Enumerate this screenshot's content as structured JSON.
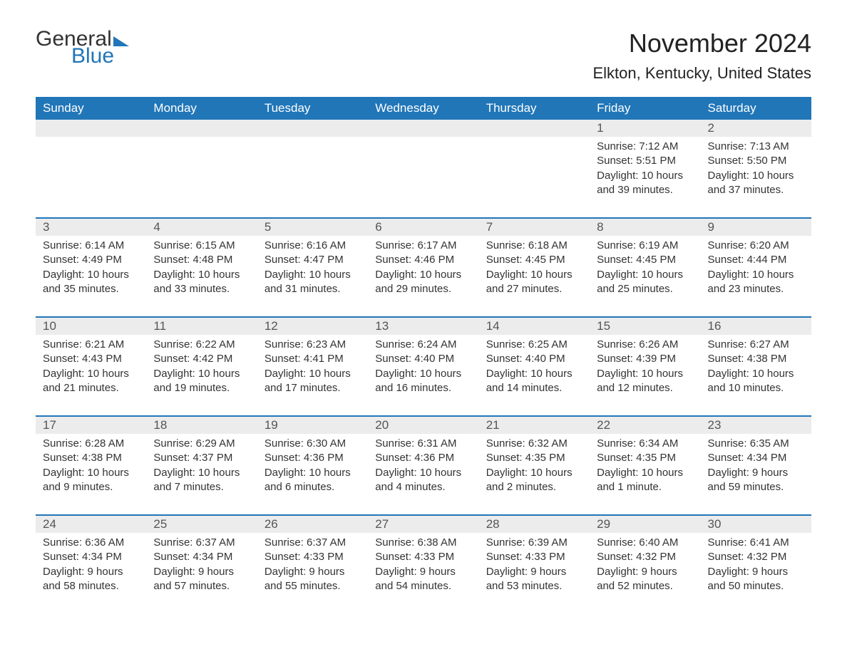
{
  "logo": {
    "text1": "General",
    "text2": "Blue"
  },
  "title": "November 2024",
  "location": "Elkton, Kentucky, United States",
  "colors": {
    "header_bg": "#2176b8",
    "header_text": "#ffffff",
    "daynum_bg": "#ececec",
    "daynum_text": "#555555",
    "body_text": "#333333",
    "rule": "#2176b8"
  },
  "days_of_week": [
    "Sunday",
    "Monday",
    "Tuesday",
    "Wednesday",
    "Thursday",
    "Friday",
    "Saturday"
  ],
  "weeks": [
    [
      null,
      null,
      null,
      null,
      null,
      {
        "n": "1",
        "sunrise": "7:12 AM",
        "sunset": "5:51 PM",
        "daylight": "10 hours and 39 minutes."
      },
      {
        "n": "2",
        "sunrise": "7:13 AM",
        "sunset": "5:50 PM",
        "daylight": "10 hours and 37 minutes."
      }
    ],
    [
      {
        "n": "3",
        "sunrise": "6:14 AM",
        "sunset": "4:49 PM",
        "daylight": "10 hours and 35 minutes."
      },
      {
        "n": "4",
        "sunrise": "6:15 AM",
        "sunset": "4:48 PM",
        "daylight": "10 hours and 33 minutes."
      },
      {
        "n": "5",
        "sunrise": "6:16 AM",
        "sunset": "4:47 PM",
        "daylight": "10 hours and 31 minutes."
      },
      {
        "n": "6",
        "sunrise": "6:17 AM",
        "sunset": "4:46 PM",
        "daylight": "10 hours and 29 minutes."
      },
      {
        "n": "7",
        "sunrise": "6:18 AM",
        "sunset": "4:45 PM",
        "daylight": "10 hours and 27 minutes."
      },
      {
        "n": "8",
        "sunrise": "6:19 AM",
        "sunset": "4:45 PM",
        "daylight": "10 hours and 25 minutes."
      },
      {
        "n": "9",
        "sunrise": "6:20 AM",
        "sunset": "4:44 PM",
        "daylight": "10 hours and 23 minutes."
      }
    ],
    [
      {
        "n": "10",
        "sunrise": "6:21 AM",
        "sunset": "4:43 PM",
        "daylight": "10 hours and 21 minutes."
      },
      {
        "n": "11",
        "sunrise": "6:22 AM",
        "sunset": "4:42 PM",
        "daylight": "10 hours and 19 minutes."
      },
      {
        "n": "12",
        "sunrise": "6:23 AM",
        "sunset": "4:41 PM",
        "daylight": "10 hours and 17 minutes."
      },
      {
        "n": "13",
        "sunrise": "6:24 AM",
        "sunset": "4:40 PM",
        "daylight": "10 hours and 16 minutes."
      },
      {
        "n": "14",
        "sunrise": "6:25 AM",
        "sunset": "4:40 PM",
        "daylight": "10 hours and 14 minutes."
      },
      {
        "n": "15",
        "sunrise": "6:26 AM",
        "sunset": "4:39 PM",
        "daylight": "10 hours and 12 minutes."
      },
      {
        "n": "16",
        "sunrise": "6:27 AM",
        "sunset": "4:38 PM",
        "daylight": "10 hours and 10 minutes."
      }
    ],
    [
      {
        "n": "17",
        "sunrise": "6:28 AM",
        "sunset": "4:38 PM",
        "daylight": "10 hours and 9 minutes."
      },
      {
        "n": "18",
        "sunrise": "6:29 AM",
        "sunset": "4:37 PM",
        "daylight": "10 hours and 7 minutes."
      },
      {
        "n": "19",
        "sunrise": "6:30 AM",
        "sunset": "4:36 PM",
        "daylight": "10 hours and 6 minutes."
      },
      {
        "n": "20",
        "sunrise": "6:31 AM",
        "sunset": "4:36 PM",
        "daylight": "10 hours and 4 minutes."
      },
      {
        "n": "21",
        "sunrise": "6:32 AM",
        "sunset": "4:35 PM",
        "daylight": "10 hours and 2 minutes."
      },
      {
        "n": "22",
        "sunrise": "6:34 AM",
        "sunset": "4:35 PM",
        "daylight": "10 hours and 1 minute."
      },
      {
        "n": "23",
        "sunrise": "6:35 AM",
        "sunset": "4:34 PM",
        "daylight": "9 hours and 59 minutes."
      }
    ],
    [
      {
        "n": "24",
        "sunrise": "6:36 AM",
        "sunset": "4:34 PM",
        "daylight": "9 hours and 58 minutes."
      },
      {
        "n": "25",
        "sunrise": "6:37 AM",
        "sunset": "4:34 PM",
        "daylight": "9 hours and 57 minutes."
      },
      {
        "n": "26",
        "sunrise": "6:37 AM",
        "sunset": "4:33 PM",
        "daylight": "9 hours and 55 minutes."
      },
      {
        "n": "27",
        "sunrise": "6:38 AM",
        "sunset": "4:33 PM",
        "daylight": "9 hours and 54 minutes."
      },
      {
        "n": "28",
        "sunrise": "6:39 AM",
        "sunset": "4:33 PM",
        "daylight": "9 hours and 53 minutes."
      },
      {
        "n": "29",
        "sunrise": "6:40 AM",
        "sunset": "4:32 PM",
        "daylight": "9 hours and 52 minutes."
      },
      {
        "n": "30",
        "sunrise": "6:41 AM",
        "sunset": "4:32 PM",
        "daylight": "9 hours and 50 minutes."
      }
    ]
  ],
  "labels": {
    "sunrise": "Sunrise:",
    "sunset": "Sunset:",
    "daylight": "Daylight:"
  }
}
